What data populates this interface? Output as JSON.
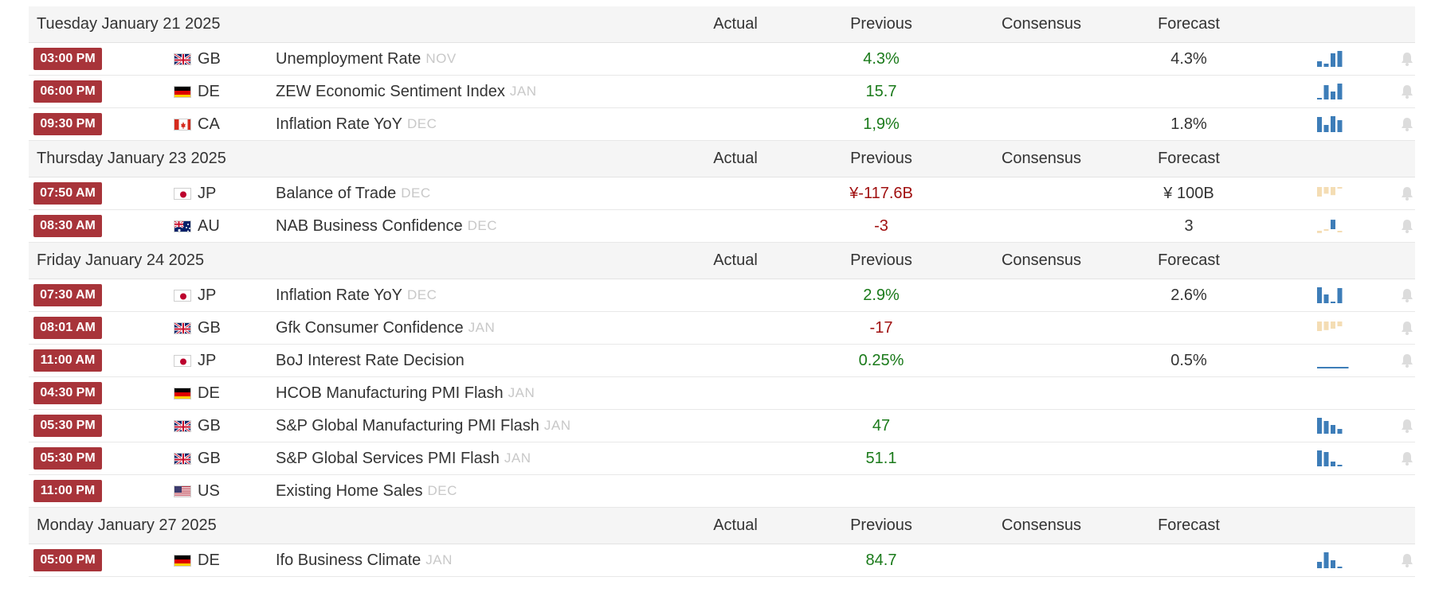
{
  "days": [
    {
      "date": "Tuesday January 21 2025",
      "columns": {
        "actual": "Actual",
        "previous": "Previous",
        "consensus": "Consensus",
        "forecast": "Forecast"
      },
      "events": [
        {
          "time": "03:00 PM",
          "country": "GB",
          "flag": "gb",
          "name": "Unemployment Rate",
          "ref": "NOV",
          "previous": "4.3%",
          "prev_color": "green",
          "forecast": "4.3%",
          "spark": [
            0.35,
            0.2,
            0.85,
            1.0
          ],
          "spark_color": "#3d7db8",
          "bell": true
        },
        {
          "time": "06:00 PM",
          "country": "DE",
          "flag": "de",
          "name": "ZEW Economic Sentiment Index",
          "ref": "JAN",
          "previous": "15.7",
          "prev_color": "green",
          "forecast": "",
          "spark": [
            0.08,
            0.9,
            0.5,
            1.0
          ],
          "spark_color": "#3d7db8",
          "bell": true
        },
        {
          "time": "09:30 PM",
          "country": "CA",
          "flag": "ca",
          "name": "Inflation Rate YoY",
          "ref": "DEC",
          "previous": "1,9%",
          "prev_color": "green",
          "forecast": "1.8%",
          "spark": [
            0.95,
            0.45,
            1.0,
            0.75
          ],
          "spark_color": "#3d7db8",
          "bell": true
        }
      ]
    },
    {
      "date": "Thursday January 23 2025",
      "columns": {
        "actual": "Actual",
        "previous": "Previous",
        "consensus": "Consensus",
        "forecast": "Forecast"
      },
      "events": [
        {
          "time": "07:50 AM",
          "country": "JP",
          "flag": "jp",
          "name": "Balance of Trade",
          "ref": "DEC",
          "previous": "¥-117.6B",
          "prev_color": "red",
          "forecast": "¥ 100B",
          "spark": [
            -1.0,
            -0.7,
            -0.85,
            -0.1
          ],
          "spark_color": "#f4ddb4",
          "bell": true
        },
        {
          "time": "08:30 AM",
          "country": "AU",
          "flag": "au",
          "name": "NAB Business Confidence",
          "ref": "DEC",
          "previous": "-3",
          "prev_color": "red",
          "forecast": "3",
          "spark": [
            -0.35,
            0.1,
            0.85,
            -0.2
          ],
          "spark_color": "#f4ddb4",
          "spark_pos_color": "#3d7db8",
          "bell": true
        }
      ]
    },
    {
      "date": "Friday January 24 2025",
      "columns": {
        "actual": "Actual",
        "previous": "Previous",
        "consensus": "Consensus",
        "forecast": "Forecast"
      },
      "events": [
        {
          "time": "07:30 AM",
          "country": "JP",
          "flag": "jp",
          "name": "Inflation Rate YoY",
          "ref": "DEC",
          "previous": "2.9%",
          "prev_color": "green",
          "forecast": "2.6%",
          "spark": [
            1.0,
            0.55,
            0.1,
            0.95
          ],
          "spark_color": "#3d7db8",
          "bell": true
        },
        {
          "time": "08:01 AM",
          "country": "GB",
          "flag": "gb",
          "name": "Gfk Consumer Confidence",
          "ref": "JAN",
          "previous": "-17",
          "prev_color": "red",
          "forecast": "",
          "spark": [
            -1.0,
            -0.9,
            -0.75,
            -0.5
          ],
          "spark_color": "#f4ddb4",
          "bell": true
        },
        {
          "time": "11:00 AM",
          "country": "JP",
          "flag": "jp",
          "name": "BoJ Interest Rate Decision",
          "ref": "",
          "previous": "0.25%",
          "prev_color": "green",
          "forecast": "0.5%",
          "spark": [
            0.08,
            0.08,
            0.08,
            0.08
          ],
          "spark_color": "#3d7db8",
          "spark_flat": true,
          "bell": true
        },
        {
          "time": "04:30 PM",
          "country": "DE",
          "flag": "de",
          "name": "HCOB Manufacturing PMI Flash",
          "ref": "JAN",
          "previous": "",
          "prev_color": "green",
          "forecast": "",
          "spark": [],
          "bell": false
        },
        {
          "time": "05:30 PM",
          "country": "GB",
          "flag": "gb",
          "name": "S&P Global Manufacturing PMI Flash",
          "ref": "JAN",
          "previous": "47",
          "prev_color": "green",
          "forecast": "",
          "spark": [
            1.0,
            0.8,
            0.55,
            0.3
          ],
          "spark_color": "#3d7db8",
          "bell": true
        },
        {
          "time": "05:30 PM",
          "country": "GB",
          "flag": "gb",
          "name": "S&P Global Services PMI Flash",
          "ref": "JAN",
          "previous": "51.1",
          "prev_color": "green",
          "forecast": "",
          "spark": [
            1.0,
            0.9,
            0.3,
            0.1
          ],
          "spark_color": "#3d7db8",
          "bell": true
        },
        {
          "time": "11:00 PM",
          "country": "US",
          "flag": "us",
          "name": "Existing Home Sales",
          "ref": "DEC",
          "previous": "",
          "prev_color": "green",
          "forecast": "",
          "spark": [],
          "bell": false
        }
      ]
    },
    {
      "date": "Monday January 27 2025",
      "columns": {
        "actual": "Actual",
        "previous": "Previous",
        "consensus": "Consensus",
        "forecast": "Forecast"
      },
      "events": [
        {
          "time": "05:00 PM",
          "country": "DE",
          "flag": "de",
          "name": "Ifo Business Climate",
          "ref": "JAN",
          "previous": "84.7",
          "prev_color": "green",
          "forecast": "",
          "spark": [
            0.4,
            1.0,
            0.5,
            0.1
          ],
          "spark_color": "#3d7db8",
          "bell": true
        }
      ]
    }
  ],
  "colors": {
    "badge": "#a8343a",
    "positive": "#1a7a1a",
    "negative": "#a01010",
    "spark_blue": "#3d7db8",
    "spark_tan": "#f4ddb4"
  }
}
